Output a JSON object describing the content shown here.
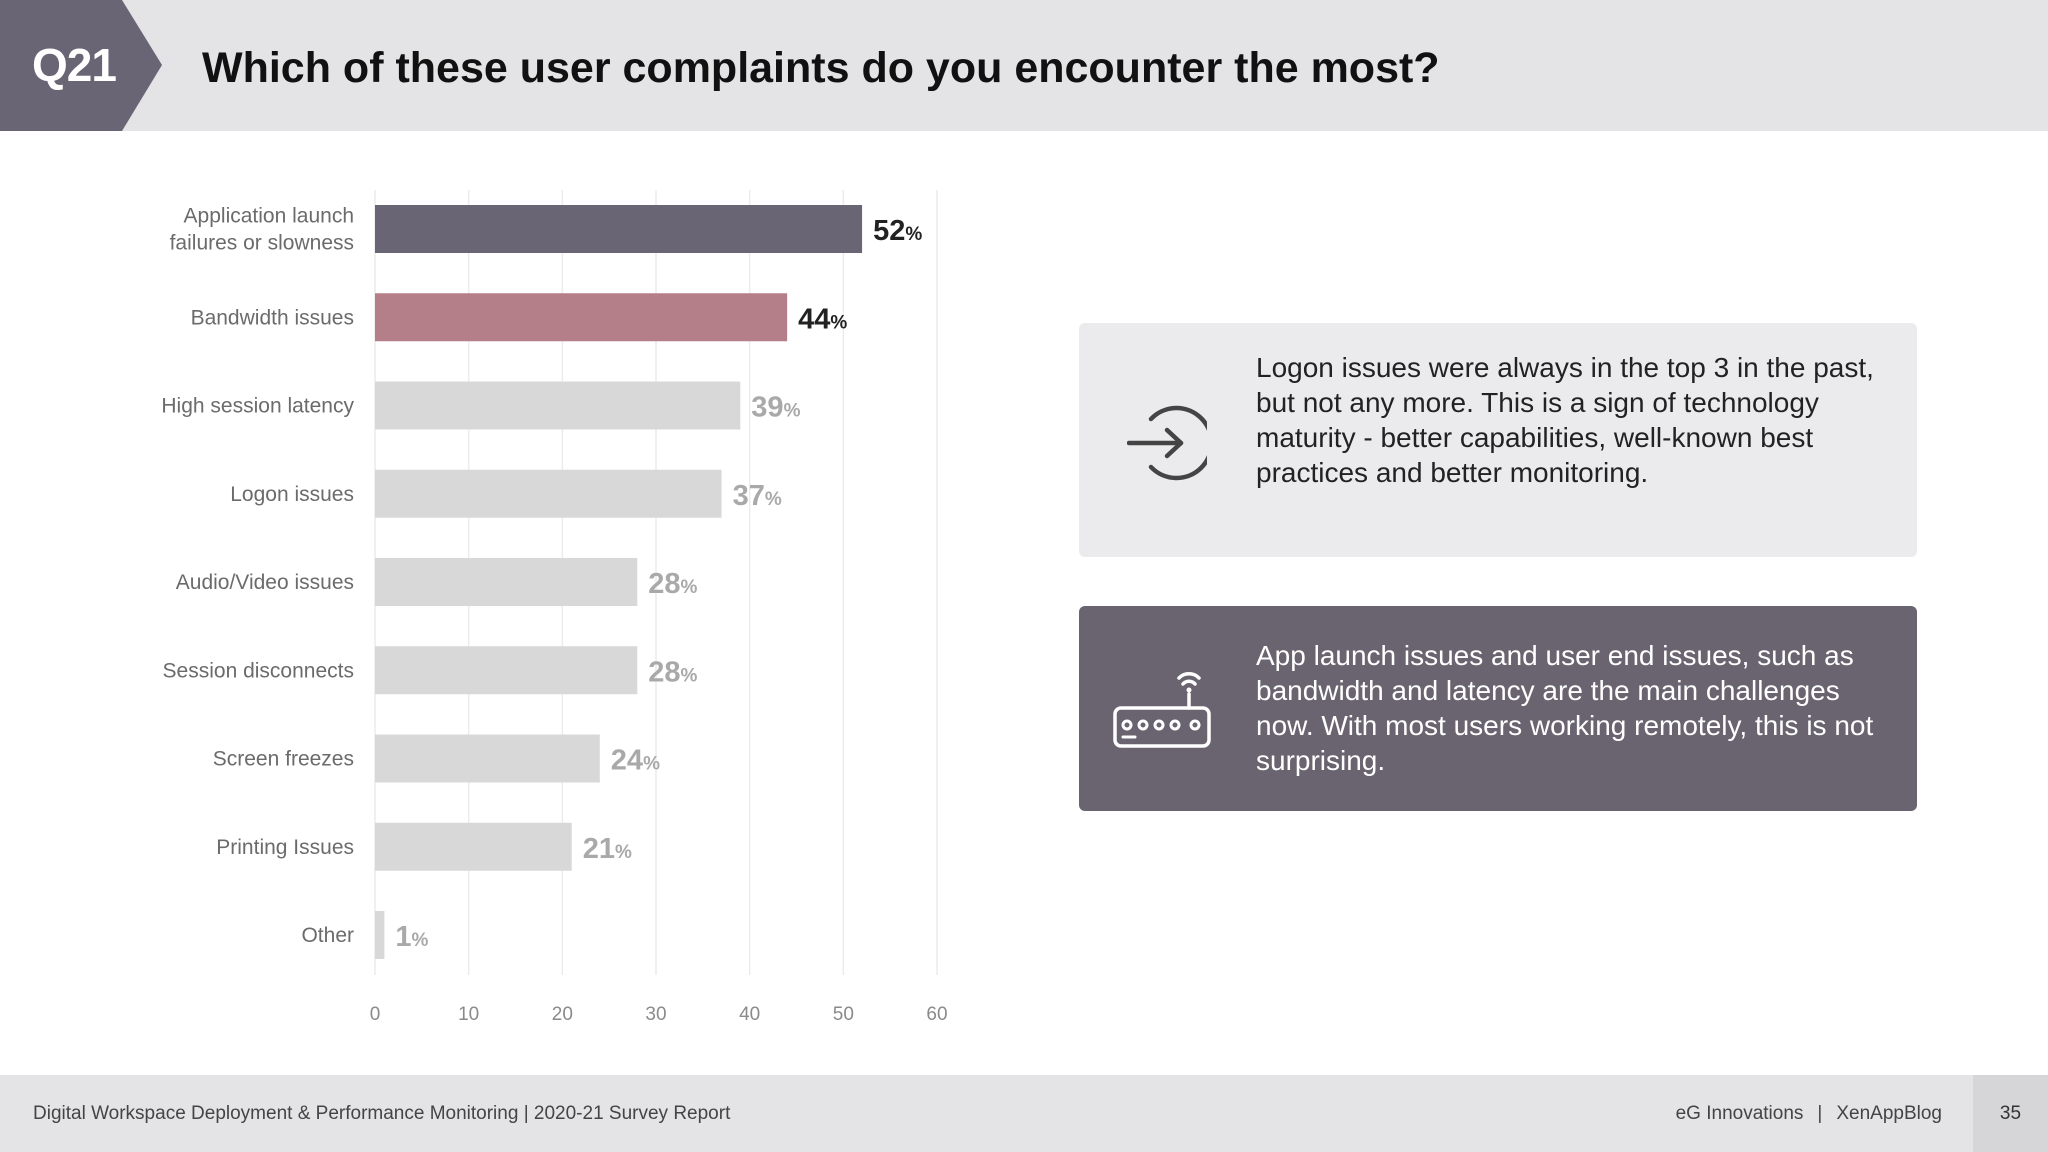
{
  "header": {
    "badge": "Q21",
    "title": "Which of these user complaints do you encounter the most?"
  },
  "colors": {
    "highlight1": "#6a6575",
    "highlight2": "#b57f8a",
    "default_bar": "#d9d8d8",
    "label_dark": "#222222",
    "label_light": "#a9a9a9"
  },
  "chart_data": {
    "type": "bar",
    "orientation": "horizontal",
    "categories": [
      [
        "Application launch",
        "failures or slowness"
      ],
      [
        "Bandwidth issues"
      ],
      [
        "High session latency"
      ],
      [
        "Logon issues"
      ],
      [
        "Audio/Video issues"
      ],
      [
        "Session disconnects"
      ],
      [
        "Screen freezes"
      ],
      [
        "Printing Issues"
      ],
      [
        "Other"
      ]
    ],
    "values": [
      52,
      44,
      39,
      37,
      28,
      28,
      24,
      21,
      1
    ],
    "value_suffix": "%",
    "bar_styles": [
      "highlight1",
      "highlight2",
      "default",
      "default",
      "default",
      "default",
      "default",
      "default",
      "default"
    ],
    "xlim": [
      0,
      60
    ],
    "xticks": [
      0,
      10,
      20,
      30,
      40,
      50,
      60
    ],
    "grid": true,
    "title": "",
    "xlabel": "",
    "ylabel": ""
  },
  "cards": [
    {
      "icon": "logon-arrow-icon",
      "text": "Logon issues were always in the top 3 in the past, but not any more. This is a sign of technology maturity - better capabilities, well-known best practices and better monitoring."
    },
    {
      "icon": "router-wifi-icon",
      "text": "App launch issues and user end issues, such as bandwidth and latency are the main chal­lenges now. With most users working remote­ly, this is not surprising."
    }
  ],
  "footer": {
    "report": "Digital Workspace Deployment & Performance Monitoring | 2020-21 Survey Report",
    "company": "eG Innovations",
    "separator": "|",
    "blog": "XenAppBlog",
    "page": "35"
  }
}
